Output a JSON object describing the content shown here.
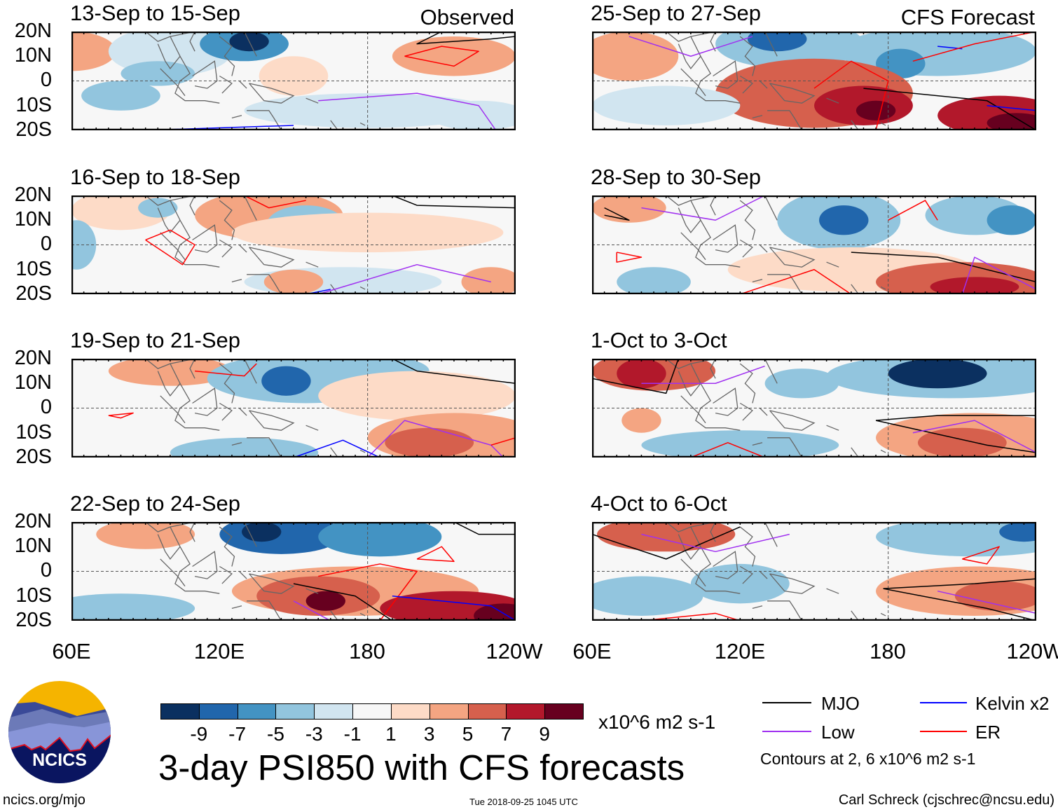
{
  "panels": [
    {
      "title": "13-Sep to 15-Sep",
      "label": "Observed"
    },
    {
      "title": "16-Sep to 18-Sep"
    },
    {
      "title": "19-Sep to 21-Sep"
    },
    {
      "title": "22-Sep to 24-Sep"
    },
    {
      "title": "25-Sep to 27-Sep",
      "label": "CFS Forecast"
    },
    {
      "title": "28-Sep to 30-Sep"
    },
    {
      "title": "1-Oct to 3-Oct"
    },
    {
      "title": "4-Oct to 6-Oct"
    }
  ],
  "lat_labels": [
    "20N",
    "10N",
    "0",
    "10S",
    "20S"
  ],
  "lon_labels": [
    "60E",
    "120E",
    "180",
    "120W"
  ],
  "colorbar": {
    "colors": [
      "#0b3060",
      "#2166ac",
      "#4393c3",
      "#92c5de",
      "#d1e5f0",
      "#f7f7f7",
      "#fddbc7",
      "#f4a582",
      "#d6604d",
      "#b2182b",
      "#67001f"
    ],
    "ticks": [
      "-9",
      "-7",
      "-5",
      "-3",
      "-1",
      "1",
      "3",
      "5",
      "7",
      "9"
    ],
    "units": "x10^6 m2 s-1"
  },
  "title": "3-day PSI850 with CFS forecasts",
  "legend": [
    {
      "label": "MJO",
      "color": "#000000"
    },
    {
      "label": "Kelvin x2",
      "color": "#0000ff"
    },
    {
      "label": "Low",
      "color": "#a030f0"
    },
    {
      "label": "ER",
      "color": "#ff0000"
    }
  ],
  "contour_note": "Contours at 2, 6 x10^6 m2 s-1",
  "logo_text": "NCICS",
  "footer": {
    "url": "ncics.org/mjo",
    "timestamp": "Tue 2018-09-25 1045 UTC",
    "credit": "Carl Schreck (cjschrec@ncsu.edu)"
  }
}
